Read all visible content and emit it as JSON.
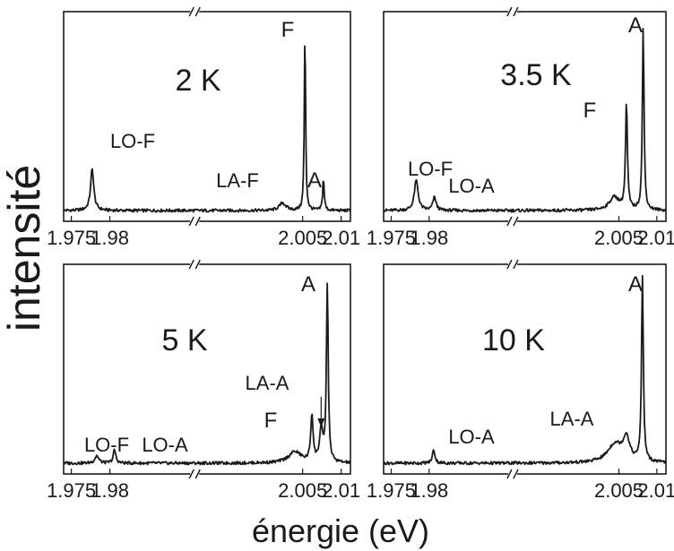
{
  "figure": {
    "ylabel": "intensité",
    "xlabel": "énergie (eV)"
  },
  "chart_data": [
    {
      "type": "line",
      "title": "2 K",
      "xlim": [
        1.974,
        2.0112
      ],
      "ylim": [
        0,
        1
      ],
      "break_x": 1.991,
      "xticks": [
        1.975,
        1.98,
        2.005,
        2.01
      ],
      "xticklabels": [
        "1.975",
        "1.98",
        "2.005",
        "2.01"
      ],
      "peaks": [
        {
          "x": 1.9777,
          "h": 0.22,
          "w": 0.00025,
          "label": "LO-F"
        },
        {
          "x": 2.0024,
          "h": 0.04,
          "w": 0.0005,
          "label": "LA-F"
        },
        {
          "x": 2.0053,
          "h": 0.97,
          "w": 0.0001,
          "label": "F"
        },
        {
          "x": 2.0077,
          "h": 0.17,
          "w": 0.00012,
          "label": "A"
        }
      ],
      "annotations": [
        "LO-F",
        "LA-F",
        "F",
        "A"
      ]
    },
    {
      "type": "line",
      "title": "3.5 K",
      "xlim": [
        1.974,
        2.0112
      ],
      "ylim": [
        0,
        1
      ],
      "break_x": 1.991,
      "xticks": [
        1.975,
        1.98,
        2.005,
        2.01
      ],
      "xticklabels": [
        "1.975",
        "1.98",
        "2.005",
        "2.01"
      ],
      "peaks": [
        {
          "x": 1.9783,
          "h": 0.16,
          "w": 0.0003,
          "label": "LO-F"
        },
        {
          "x": 1.9807,
          "h": 0.07,
          "w": 0.00025,
          "label": "LO-A"
        },
        {
          "x": 2.0044,
          "h": 0.07,
          "w": 0.0008,
          "label": ""
        },
        {
          "x": 2.006,
          "h": 0.56,
          "w": 0.00015,
          "label": "F"
        },
        {
          "x": 2.0082,
          "h": 0.97,
          "w": 0.00013,
          "label": "A"
        }
      ],
      "annotations": [
        "LO-F",
        "LO-A",
        "F",
        "A"
      ]
    },
    {
      "type": "line",
      "title": "5 K",
      "xlim": [
        1.974,
        2.0112
      ],
      "ylim": [
        0,
        1
      ],
      "break_x": 1.991,
      "xticks": [
        1.975,
        1.98,
        2.005,
        2.01
      ],
      "xticklabels": [
        "1.975",
        "1.98",
        "2.005",
        "2.01"
      ],
      "peaks": [
        {
          "x": 1.9783,
          "h": 0.04,
          "w": 0.0003,
          "label": "LO-F"
        },
        {
          "x": 1.9806,
          "h": 0.07,
          "w": 0.0002,
          "label": "LO-A"
        },
        {
          "x": 2.004,
          "h": 0.06,
          "w": 0.001,
          "label": ""
        },
        {
          "x": 2.0062,
          "h": 0.25,
          "w": 0.00018,
          "label": "F"
        },
        {
          "x": 2.0074,
          "h": 0.17,
          "w": 0.00025,
          "label": "LA-A"
        },
        {
          "x": 2.0082,
          "h": 0.94,
          "w": 0.00014,
          "label": "A"
        }
      ],
      "annotations": [
        "LO-F",
        "LO-A",
        "F",
        "LA-A",
        "A"
      ]
    },
    {
      "type": "line",
      "title": "10 K",
      "xlim": [
        1.974,
        2.0112
      ],
      "ylim": [
        0,
        1
      ],
      "break_x": 1.991,
      "xticks": [
        1.975,
        1.98,
        2.005,
        2.01
      ],
      "xticklabels": [
        "1.975",
        "1.98",
        "2.005",
        "2.01"
      ],
      "peaks": [
        {
          "x": 1.9806,
          "h": 0.07,
          "w": 0.0002,
          "label": "LO-A"
        },
        {
          "x": 2.0045,
          "h": 0.1,
          "w": 0.0012,
          "label": ""
        },
        {
          "x": 2.006,
          "h": 0.12,
          "w": 0.0005,
          "label": "LA-A"
        },
        {
          "x": 2.0081,
          "h": 0.98,
          "w": 0.00014,
          "label": "A"
        }
      ],
      "annotations": [
        "LO-A",
        "LA-A",
        "A"
      ]
    }
  ]
}
